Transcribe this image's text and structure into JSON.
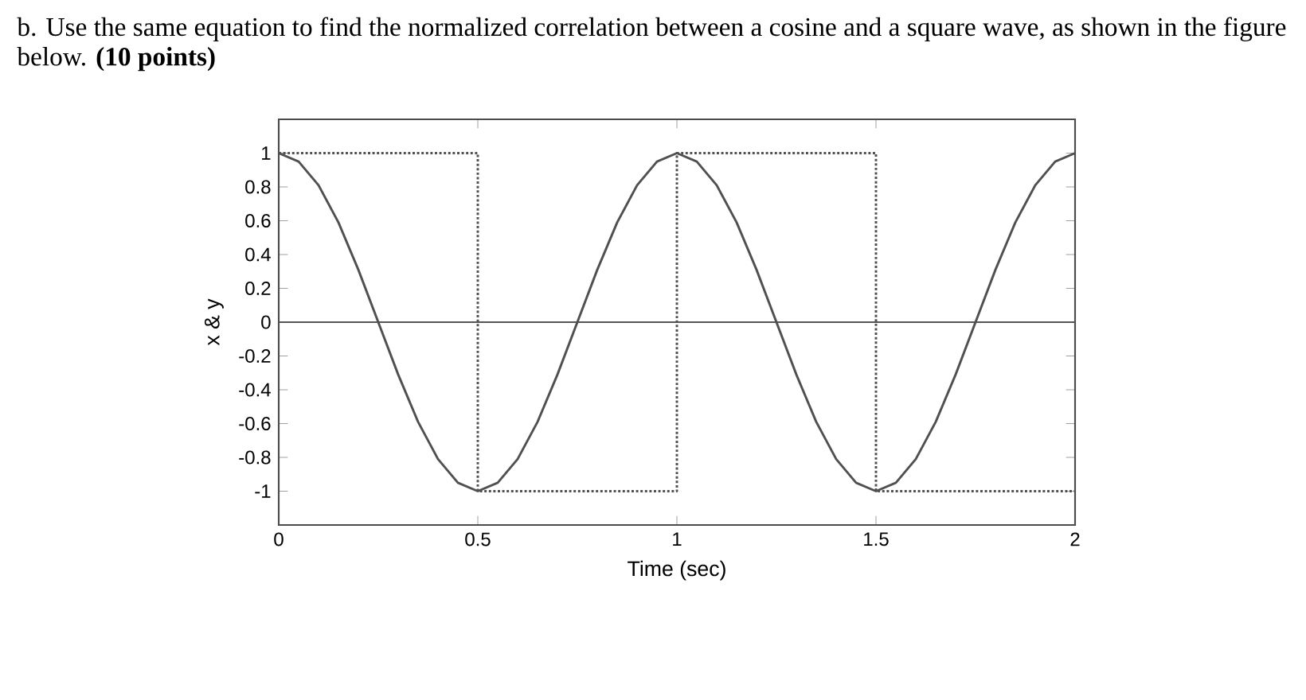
{
  "chart_data": {
    "type": "line",
    "title": "b.  Use the same equation to find the normalized correlation between a cosine and a square wave, as shown in the figure below. **(10 points)**",
    "xlabel": "Time (sec)",
    "ylabel": "x & y",
    "xlim": [
      0,
      2
    ],
    "ylim": [
      -1.2,
      1.2
    ],
    "xticks": [
      0,
      0.5,
      1,
      1.5,
      2
    ],
    "yticks": [
      -1,
      -0.8,
      -0.6,
      -0.4,
      -0.2,
      0,
      0.2,
      0.4,
      0.6,
      0.8,
      1
    ],
    "ref_lines": [
      {
        "axis": "y",
        "value": 0,
        "color": "#555555"
      }
    ],
    "series": [
      {
        "color": "#505050",
        "line_style": "solid",
        "x": [
          0,
          0.05,
          0.1,
          0.15,
          0.2,
          0.25,
          0.3,
          0.35,
          0.4,
          0.45,
          0.5,
          0.55,
          0.6,
          0.65,
          0.7,
          0.75,
          0.8,
          0.85,
          0.9,
          0.95,
          1,
          1.05,
          1.1,
          1.15,
          1.2,
          1.25,
          1.3,
          1.35,
          1.4,
          1.45,
          1.5,
          1.55,
          1.6,
          1.65,
          1.7,
          1.75,
          1.8,
          1.85,
          1.9,
          1.95,
          2
        ],
        "values": [
          1,
          0.95,
          0.81,
          0.59,
          0.31,
          0,
          -0.31,
          -0.59,
          -0.81,
          -0.95,
          -1,
          -0.95,
          -0.81,
          -0.59,
          -0.31,
          0,
          0.31,
          0.59,
          0.81,
          0.95,
          1,
          0.95,
          0.81,
          0.59,
          0.31,
          0,
          -0.31,
          -0.59,
          -0.81,
          -0.95,
          -1,
          -0.95,
          -0.81,
          -0.59,
          -0.31,
          0,
          0.31,
          0.59,
          0.81,
          0.95,
          1
        ]
      },
      {
        "color": "#505050",
        "line_style": "dotted",
        "x": [
          0,
          0.5,
          0.5,
          1,
          1,
          1.5,
          1.5,
          2
        ],
        "values": [
          1,
          1,
          -1,
          -1,
          1,
          1,
          -1,
          -1
        ]
      }
    ]
  }
}
